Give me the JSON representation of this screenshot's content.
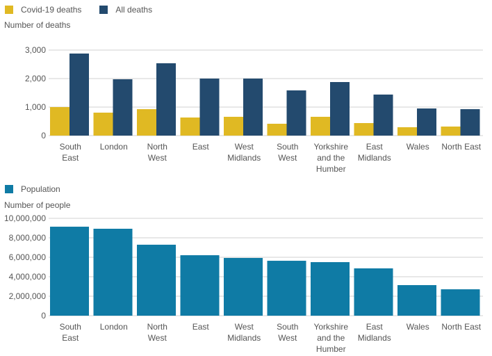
{
  "chart_data": [
    {
      "type": "bar",
      "y_label": "Number of deaths",
      "categories": [
        "South East",
        "London",
        "North West",
        "East",
        "West Midlands",
        "South West",
        "Yorkshire and the Humber",
        "East Midlands",
        "Wales",
        "North East"
      ],
      "series": [
        {
          "name": "Covid-19 deaths",
          "color": "#e0b923",
          "values": [
            1000,
            805,
            927,
            634,
            659,
            415,
            659,
            439,
            293,
            317
          ]
        },
        {
          "name": "All deaths",
          "color": "#234a6e",
          "values": [
            2878,
            1976,
            2537,
            2000,
            2000,
            1585,
            1878,
            1439,
            951,
            927
          ]
        }
      ],
      "ylim": [
        0,
        3000
      ],
      "yticks": [
        0,
        {
          "value": 1000,
          "label": "1,000"
        },
        {
          "value": 2000,
          "label": "2,000"
        },
        {
          "value": 3000,
          "label": "3,000"
        }
      ],
      "grid": true
    },
    {
      "type": "bar",
      "y_label": "Number of people",
      "categories": [
        "South East",
        "London",
        "North West",
        "East",
        "West Midlands",
        "South West",
        "Yorkshire and the Humber",
        "East Midlands",
        "Wales",
        "North East"
      ],
      "series": [
        {
          "name": "Population",
          "color": "#0f7ba5",
          "values": [
            9140000,
            8930000,
            7290000,
            6210000,
            5930000,
            5640000,
            5500000,
            4860000,
            3140000,
            2710000
          ]
        }
      ],
      "ylim": [
        0,
        10000000
      ],
      "yticks": [
        0,
        {
          "value": 2000000,
          "label": "2,000,000"
        },
        {
          "value": 4000000,
          "label": "4,000,000"
        },
        {
          "value": 6000000,
          "label": "6,000,000"
        },
        {
          "value": 8000000,
          "label": "8,000,000"
        },
        {
          "value": 10000000,
          "label": "10,000,000"
        }
      ],
      "grid": true
    }
  ]
}
